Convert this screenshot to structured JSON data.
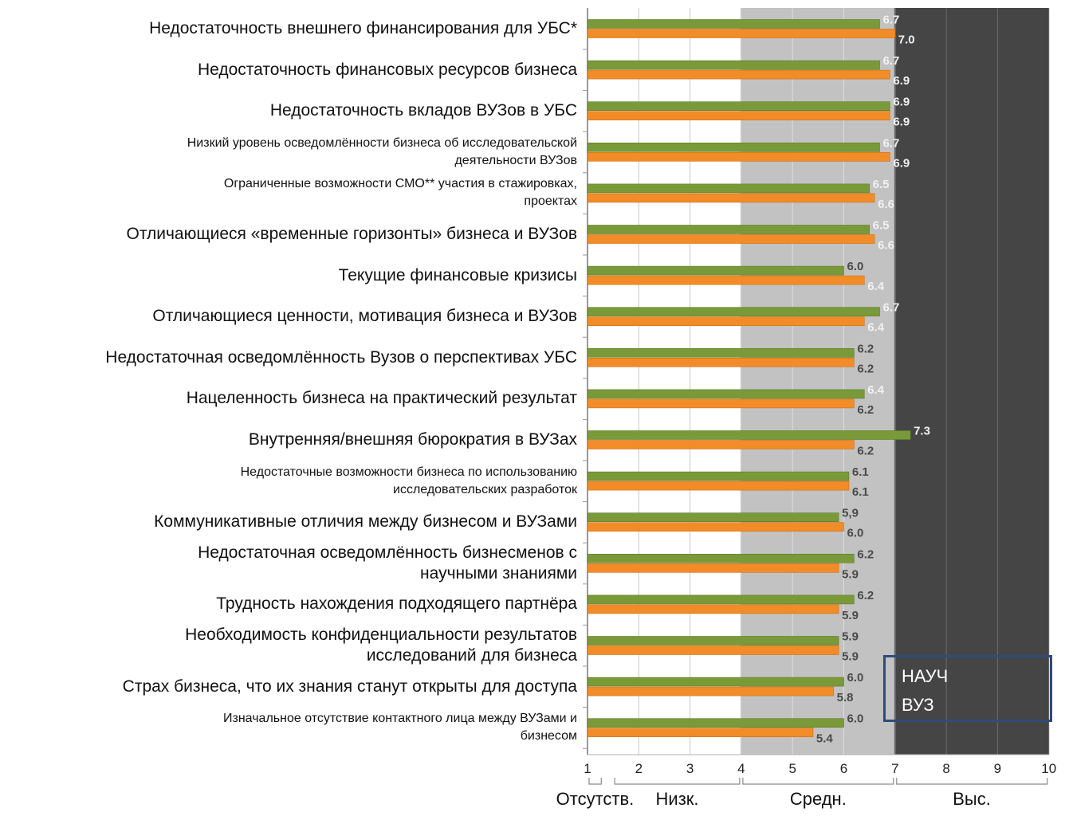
{
  "chart_data": {
    "type": "bar",
    "orientation": "horizontal",
    "categories": [
      "Недостаточность внешнего финансирования для УБС*",
      "Недостаточность финансовых ресурсов бизнеса",
      "Недостаточность вкладов ВУЗов в УБС",
      "Низкий уровень осведомлённости бизнеса об исследовательской деятельности ВУЗов",
      "Ограниченные возможности СМО** участия в стажировках, проектах",
      "Отличающиеся «временные горизонты» бизнеса и ВУЗов",
      "Текущие финансовые кризисы",
      "Отличающиеся ценности, мотивация бизнеса и ВУЗов",
      "Недостаточная осведомлённость Вузов о перспективах УБС",
      "Нацеленность бизнеса на практический результат",
      "Внутренняя/внешняя бюрократия в ВУЗах",
      "Недостаточные возможности бизнеса по использованию исследовательских разработок",
      "Коммуникативные отличия между бизнесом и ВУЗами",
      "Недостаточная осведомлённость бизнесменов с научными знаниями",
      "Трудность нахождения подходящего партнёра",
      "Необходимость конфиденциальности результатов исследований для бизнеса",
      "Страх бизнеса, что их знания станут открыты для доступа",
      "Изначальное отсутствие контактного лица между ВУЗами и бизнесом"
    ],
    "category_lines": [
      [
        "Недостаточность внешнего финансирования для УБС*"
      ],
      [
        "Недостаточность финансовых ресурсов бизнеса"
      ],
      [
        "Недостаточность вкладов ВУЗов в УБС"
      ],
      [
        "Низкий уровень осведомлённости бизнеса об исследовательской",
        "деятельности ВУЗов"
      ],
      [
        "Ограниченные возможности СМО** участия в стажировках,",
        "проектах"
      ],
      [
        "Отличающиеся «временные горизонты» бизнеса и ВУЗов"
      ],
      [
        "Текущие финансовые кризисы"
      ],
      [
        "Отличающиеся ценности, мотивация бизнеса и ВУЗов"
      ],
      [
        "Недостаточная осведомлённость Вузов о перспективах УБС"
      ],
      [
        "Нацеленность бизнеса на практический результат"
      ],
      [
        "Внутренняя/внешняя бюрократия в ВУЗах"
      ],
      [
        "Недостаточные возможности бизнеса по использованию",
        "исследовательских разработок"
      ],
      [
        "Коммуникативные отличия между бизнесом и ВУЗами"
      ],
      [
        "Недостаточная осведомлённость бизнесменов с",
        "научными знаниями"
      ],
      [
        "Трудность нахождения подходящего партнёра"
      ],
      [
        "Необходимость конфиденциальности результатов",
        "исследований для бизнеса"
      ],
      [
        "Страх бизнеса, что их знания станут открыты для доступа"
      ],
      [
        "Изначальное отсутствие контактного лица между ВУЗами и",
        "бизнесом"
      ]
    ],
    "series": [
      {
        "name": "НАУЧ",
        "color": "#7a9a3a",
        "values": [
          6.7,
          6.7,
          6.9,
          6.7,
          6.5,
          6.5,
          6.0,
          6.7,
          6.2,
          6.4,
          7.3,
          6.1,
          5.9,
          6.2,
          6.2,
          5.9,
          6.0,
          6.0
        ],
        "labels": [
          "6.7",
          "6.7",
          "6.9",
          "6.7",
          "6.5",
          "6.5",
          "6.0",
          "6.7",
          "6.2",
          "6.4",
          "7.3",
          "6.1",
          "5,9",
          "6.2",
          "6.2",
          "5.9",
          "6.0",
          "6.0"
        ]
      },
      {
        "name": "ВУЗ",
        "color": "#f28c28",
        "values": [
          7.0,
          6.9,
          6.9,
          6.9,
          6.6,
          6.6,
          6.4,
          6.4,
          6.2,
          6.2,
          6.2,
          6.1,
          6.0,
          5.9,
          5.9,
          5.9,
          5.8,
          5.4
        ],
        "labels": [
          "7.0",
          "6.9",
          "6.9",
          "6.9",
          "6.6",
          "6.6",
          "6.4",
          "6.4",
          "6.2",
          "6.2",
          "6.2",
          "6.1",
          "6.0",
          "5.9",
          "5.9",
          "5.9",
          "5.8",
          "5.4"
        ]
      }
    ],
    "xlim": [
      1,
      10
    ],
    "xticks": [
      "1",
      "2",
      "3",
      "4",
      "5",
      "6",
      "7",
      "8",
      "9",
      "10"
    ],
    "zones": [
      {
        "label": "Отсутств.",
        "from": 1,
        "to": 1.3
      },
      {
        "label": "Низк.",
        "from": 1.5,
        "to": 4
      },
      {
        "label": "Средн.",
        "from": 4,
        "to": 7
      },
      {
        "label": "Выс.",
        "from": 7,
        "to": 10
      }
    ],
    "zone_colors": {
      "low": "#ffffff",
      "mid": "#c2c2c2",
      "high": "#454545"
    },
    "legend_position": "bottom-right",
    "grid": true
  }
}
